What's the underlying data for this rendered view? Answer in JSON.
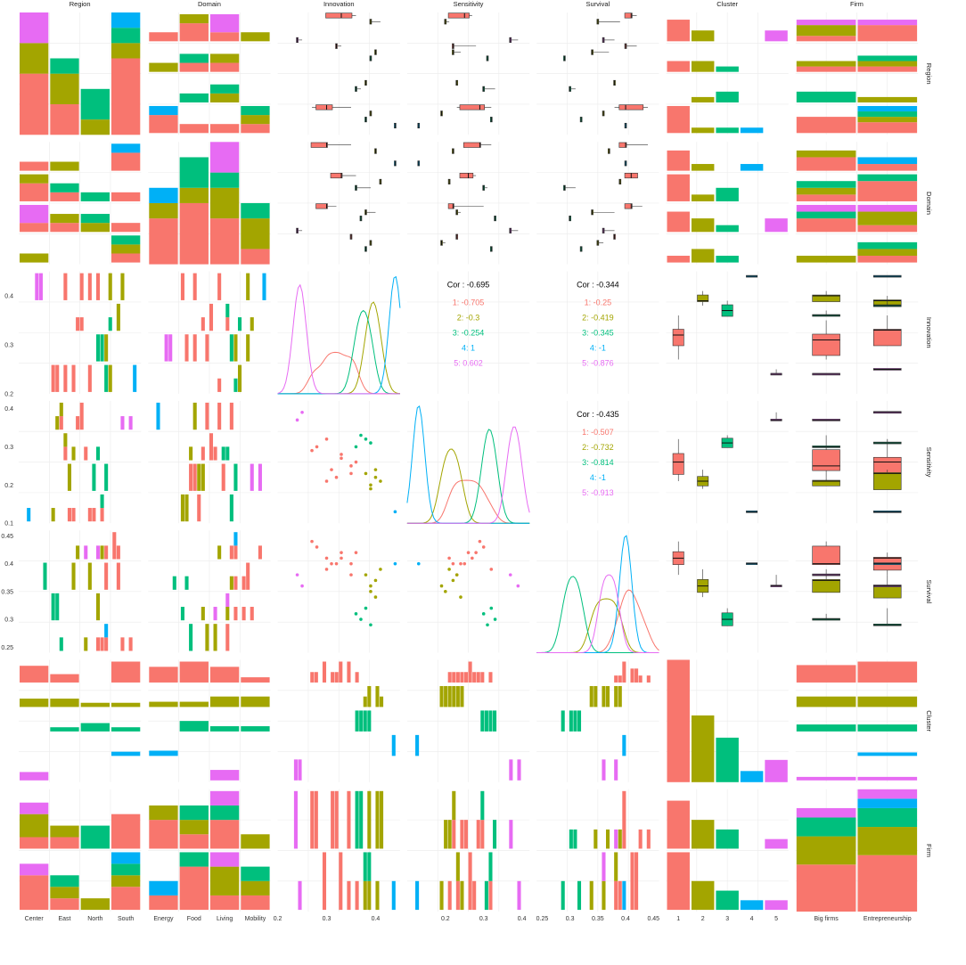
{
  "chart_data": {
    "type": "pairs-matrix",
    "variables": [
      "Region",
      "Domain",
      "Innovation",
      "Sensitivity",
      "Survival",
      "Cluster",
      "Firm"
    ],
    "colors": {
      "1": "#F8766D",
      "2": "#A3A500",
      "3": "#00BF7D",
      "4": "#00B0F6",
      "5": "#E76BF3"
    },
    "cluster_levels": [
      "1",
      "2",
      "3",
      "4",
      "5"
    ],
    "levels": {
      "Region": [
        "Center",
        "East",
        "North",
        "South"
      ],
      "Domain": [
        "Energy",
        "Food",
        "Living",
        "Mobility"
      ],
      "Cluster": [
        "1",
        "2",
        "3",
        "4",
        "5"
      ],
      "Firm": [
        "Big firms",
        "Entrepreneurship"
      ]
    },
    "axes": {
      "Innovation": {
        "range": [
          0.2,
          0.45
        ],
        "ticks": [
          0.2,
          0.3,
          0.4
        ],
        "ticks_left": [
          0.2,
          0.3,
          0.4
        ]
      },
      "Sensitivity": {
        "range": [
          0.1,
          0.42
        ],
        "ticks": [
          0.2,
          0.3,
          0.4
        ],
        "ticks_left": [
          0.1,
          0.2,
          0.3,
          0.4
        ]
      },
      "Survival": {
        "range": [
          0.24,
          0.46
        ],
        "ticks": [
          0.25,
          0.3,
          0.35,
          0.4,
          0.45
        ],
        "ticks_left": [
          0.25,
          0.3,
          0.35,
          0.4,
          0.45
        ]
      },
      "Region_counts": {
        "ticks": [
          0,
          3,
          6,
          9
        ],
        "max": 11
      },
      "Domain_counts": {
        "ticks": [
          0,
          1,
          2,
          3
        ],
        "max": 3.5
      },
      "Cluster_counts": {
        "ticks": [
          0,
          2,
          4,
          6
        ],
        "max": 7
      },
      "Firm_counts": {
        "ticks": [
          0,
          2,
          4,
          6
        ],
        "max": 7
      }
    },
    "region_by_cluster": {
      "Center": [
        5,
        4,
        0,
        0,
        2
      ],
      "East": [
        3,
        3,
        1,
        1,
        0
      ],
      "North": [
        1,
        2,
        3,
        1,
        0
      ],
      "South": [
        7,
        1,
        2,
        1,
        0
      ]
    },
    "domain_by_cluster": {
      "Energy": [
        3,
        1,
        0,
        1,
        0
      ],
      "Food": [
        3,
        1,
        2,
        0,
        0
      ],
      "Living": [
        2,
        2,
        1,
        0,
        1
      ],
      "Mobility": [
        1,
        2,
        1,
        1,
        0
      ]
    },
    "region_by_domain": {
      "Center": [
        1,
        3,
        3,
        3
      ],
      "East": [
        1,
        3,
        3,
        1
      ],
      "North": [
        1,
        1,
        3,
        2
      ],
      "South": [
        3,
        4,
        3,
        1
      ]
    },
    "firm_by_cluster": {
      "Big firms": [
        4,
        3,
        3,
        0,
        1
      ],
      "Entrepreneurship": [
        7,
        3,
        1,
        1,
        1
      ]
    },
    "cluster_counts": [
      11,
      6,
      4,
      1,
      2
    ],
    "points": {
      "Innovation": [
        0.35,
        0.33,
        0.28,
        0.33,
        0.3,
        0.32,
        0.35,
        0.36,
        0.27,
        0.3,
        0.31,
        0.39,
        0.4,
        0.38,
        0.39,
        0.41,
        0.4,
        0.36,
        0.37,
        0.38,
        0.39,
        0.44,
        0.24,
        0.25
      ],
      "Sensitivity": [
        0.25,
        0.28,
        0.3,
        0.27,
        0.32,
        0.22,
        0.23,
        0.26,
        0.29,
        0.21,
        0.24,
        0.2,
        0.22,
        0.23,
        0.19,
        0.21,
        0.24,
        0.3,
        0.33,
        0.32,
        0.31,
        0.13,
        0.37,
        0.39
      ],
      "Survival": [
        0.4,
        0.42,
        0.43,
        0.41,
        0.39,
        0.4,
        0.38,
        0.42,
        0.44,
        0.41,
        0.4,
        0.35,
        0.37,
        0.38,
        0.36,
        0.39,
        0.34,
        0.31,
        0.3,
        0.32,
        0.29,
        0.4,
        0.38,
        0.36
      ],
      "Cluster": [
        "1",
        "1",
        "1",
        "1",
        "1",
        "1",
        "1",
        "1",
        "1",
        "1",
        "1",
        "2",
        "2",
        "2",
        "2",
        "2",
        "2",
        "3",
        "3",
        "3",
        "3",
        "4",
        "5",
        "5"
      ],
      "Region": [
        "Center",
        "East",
        "South",
        "Center",
        "South",
        "East",
        "South",
        "Center",
        "South",
        "Center",
        "South",
        "Center",
        "East",
        "North",
        "South",
        "Center",
        "East",
        "North",
        "North",
        "South",
        "East",
        "South",
        "Center",
        "Center"
      ],
      "Domain": [
        "Energy",
        "Food",
        "Living",
        "Food",
        "Energy",
        "Living",
        "Mobility",
        "Food",
        "Energy",
        "Living",
        "Food",
        "Mobility",
        "Energy",
        "Living",
        "Mobility",
        "Food",
        "Living",
        "Food",
        "Living",
        "Mobility",
        "Food",
        "Energy",
        "Living",
        "Living"
      ],
      "Firm": [
        "Big firms",
        "Entrepreneurship",
        "Big firms",
        "Entrepreneurship",
        "Entrepreneurship",
        "Big firms",
        "Entrepreneurship",
        "Entrepreneurship",
        "Big firms",
        "Entrepreneurship",
        "Big firms",
        "Big firms",
        "Big firms",
        "Entrepreneurship",
        "Entrepreneurship",
        "Big firms",
        "Entrepreneurship",
        "Big firms",
        "Big firms",
        "Entrepreneurship",
        "Entrepreneurship",
        "Entrepreneurship",
        "Big firms",
        "Entrepreneurship"
      ]
    },
    "correlations": [
      {
        "pair": [
          "Innovation",
          "Sensitivity"
        ],
        "overall": "Cor : -0.695",
        "groups": [
          "1: -0.705",
          "2: -0.3",
          "3: -0.254",
          "4: 1",
          "5: 0.602"
        ]
      },
      {
        "pair": [
          "Innovation",
          "Survival"
        ],
        "overall": "Cor : -0.344",
        "groups": [
          "1: -0.25",
          "2: -0.419",
          "3: -0.345",
          "4: -1",
          "5: -0.876"
        ]
      },
      {
        "pair": [
          "Sensitivity",
          "Survival"
        ],
        "overall": "Cor : -0.435",
        "groups": [
          "1: -0.507",
          "2: -0.732",
          "3: -0.814",
          "4: -1",
          "5: -0.913"
        ]
      }
    ],
    "grid": true,
    "legend": "none"
  }
}
